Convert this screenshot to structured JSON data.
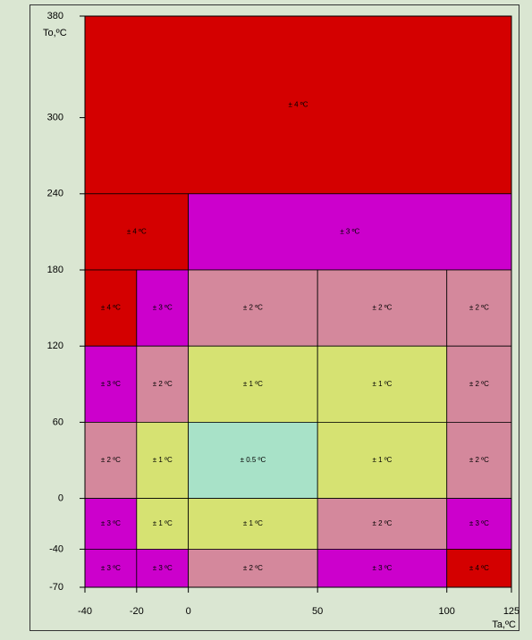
{
  "chart_data": {
    "type": "zones",
    "x_label": "Ta,ºC",
    "y_label": "To,ºC",
    "xlim": [
      -40,
      125
    ],
    "xticks": [
      -40,
      -20,
      0,
      50,
      100,
      125
    ],
    "ylim": [
      -70,
      380
    ],
    "yticks": [
      -70,
      -40,
      0,
      60,
      120,
      180,
      240,
      300,
      380
    ],
    "zones": [
      {
        "x": [
          -40,
          125
        ],
        "y": [
          240,
          380
        ],
        "label": "± 4 ºC",
        "color": "#d40000"
      },
      {
        "x": [
          -40,
          0
        ],
        "y": [
          180,
          240
        ],
        "label": "± 4 ºC",
        "color": "#d40000"
      },
      {
        "x": [
          0,
          125
        ],
        "y": [
          180,
          240
        ],
        "label": "± 3 ºC",
        "color": "#cc00cc"
      },
      {
        "x": [
          -40,
          -20
        ],
        "y": [
          120,
          180
        ],
        "label": "± 4 ºC",
        "color": "#d40000"
      },
      {
        "x": [
          -20,
          0
        ],
        "y": [
          120,
          180
        ],
        "label": "± 3 ºC",
        "color": "#cc00cc"
      },
      {
        "x": [
          0,
          50
        ],
        "y": [
          120,
          180
        ],
        "label": "± 2 ºC",
        "color": "#d4889c"
      },
      {
        "x": [
          50,
          100
        ],
        "y": [
          120,
          180
        ],
        "label": "± 2 ºC",
        "color": "#d4889c"
      },
      {
        "x": [
          100,
          125
        ],
        "y": [
          120,
          180
        ],
        "label": "± 2 ºC",
        "color": "#d4889c"
      },
      {
        "x": [
          -40,
          -20
        ],
        "y": [
          60,
          120
        ],
        "label": "± 3 ºC",
        "color": "#cc00cc"
      },
      {
        "x": [
          -20,
          0
        ],
        "y": [
          60,
          120
        ],
        "label": "± 2 ºC",
        "color": "#d4889c"
      },
      {
        "x": [
          0,
          50
        ],
        "y": [
          60,
          120
        ],
        "label": "± 1 ºC",
        "color": "#d6e272"
      },
      {
        "x": [
          50,
          100
        ],
        "y": [
          60,
          120
        ],
        "label": "± 1 ºC",
        "color": "#d6e272"
      },
      {
        "x": [
          100,
          125
        ],
        "y": [
          60,
          120
        ],
        "label": "± 2 ºC",
        "color": "#d4889c"
      },
      {
        "x": [
          -40,
          -20
        ],
        "y": [
          0,
          60
        ],
        "label": "± 2 ºC",
        "color": "#d4889c"
      },
      {
        "x": [
          -20,
          0
        ],
        "y": [
          0,
          60
        ],
        "label": "± 1 ºC",
        "color": "#d6e272"
      },
      {
        "x": [
          0,
          50
        ],
        "y": [
          0,
          60
        ],
        "label": "± 0.5 ºC",
        "color": "#a8e2c8"
      },
      {
        "x": [
          50,
          100
        ],
        "y": [
          0,
          60
        ],
        "label": "± 1 ºC",
        "color": "#d6e272"
      },
      {
        "x": [
          100,
          125
        ],
        "y": [
          0,
          60
        ],
        "label": "± 2 ºC",
        "color": "#d4889c"
      },
      {
        "x": [
          -40,
          -20
        ],
        "y": [
          -40,
          0
        ],
        "label": "± 3 ºC",
        "color": "#cc00cc"
      },
      {
        "x": [
          -20,
          0
        ],
        "y": [
          -40,
          0
        ],
        "label": "± 1 ºC",
        "color": "#d6e272"
      },
      {
        "x": [
          0,
          50
        ],
        "y": [
          -40,
          0
        ],
        "label": "± 1 ºC",
        "color": "#d6e272"
      },
      {
        "x": [
          50,
          100
        ],
        "y": [
          -40,
          0
        ],
        "label": "± 2 ºC",
        "color": "#d4889c"
      },
      {
        "x": [
          100,
          125
        ],
        "y": [
          -40,
          0
        ],
        "label": "± 3 ºC",
        "color": "#cc00cc"
      },
      {
        "x": [
          -40,
          -20
        ],
        "y": [
          -70,
          -40
        ],
        "label": "± 3 ºC",
        "color": "#cc00cc"
      },
      {
        "x": [
          -20,
          0
        ],
        "y": [
          -70,
          -40
        ],
        "label": "± 3 ºC",
        "color": "#cc00cc"
      },
      {
        "x": [
          0,
          50
        ],
        "y": [
          -70,
          -40
        ],
        "label": "± 2 ºC",
        "color": "#d4889c"
      },
      {
        "x": [
          50,
          100
        ],
        "y": [
          -70,
          -40
        ],
        "label": "± 3 ºC",
        "color": "#cc00cc"
      },
      {
        "x": [
          100,
          125
        ],
        "y": [
          -70,
          -40
        ],
        "label": "± 4 ºC",
        "color": "#d40000"
      }
    ]
  }
}
